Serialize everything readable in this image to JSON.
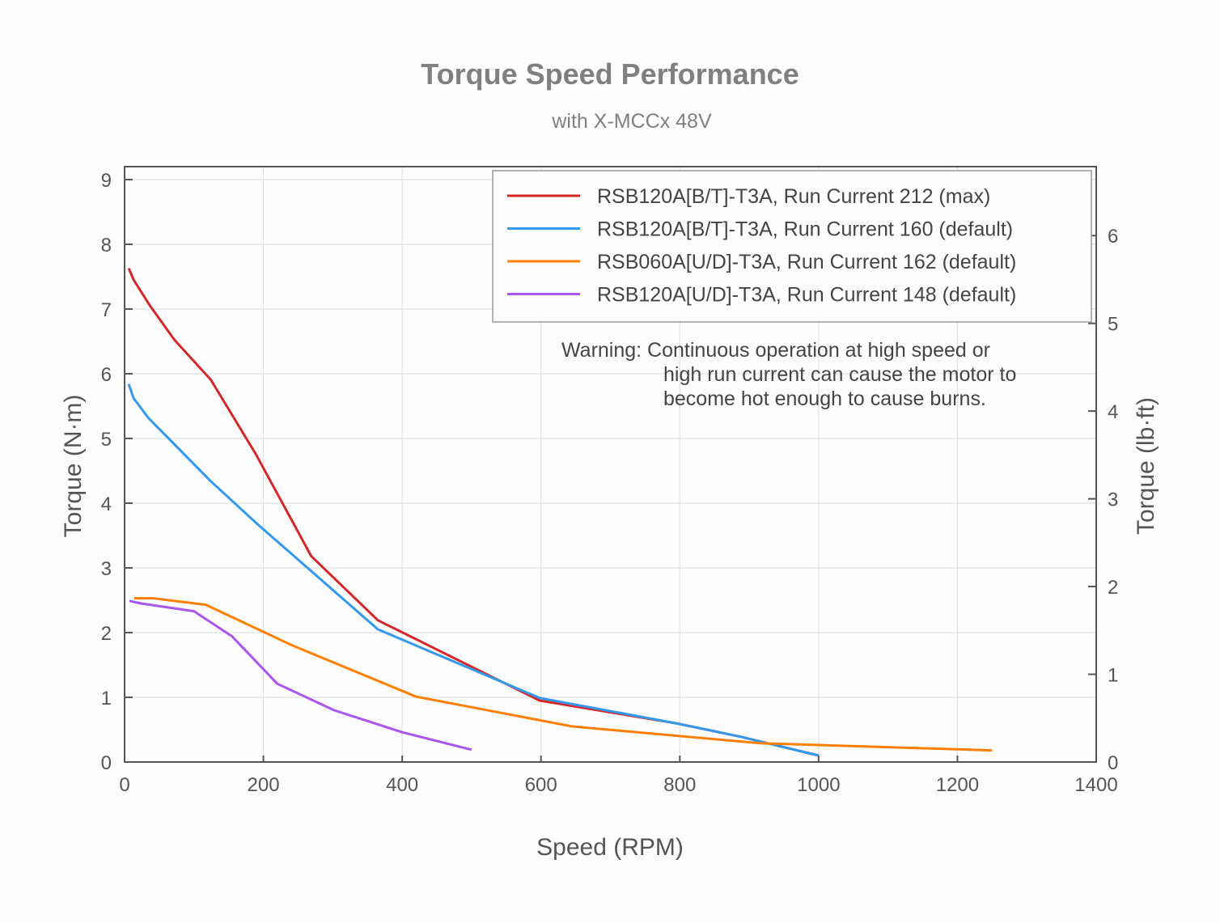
{
  "chart_data": {
    "type": "line",
    "title": "Torque Speed Performance",
    "subtitle": "with X-MCCx 48V",
    "xlabel": "Speed (RPM)",
    "ylabel": "Torque (N·m)",
    "y2label": "Torque (lb·ft)",
    "xlim": [
      0,
      1400
    ],
    "ylim": [
      0,
      9.2
    ],
    "y2lim": [
      0,
      6.786
    ],
    "xticks": [
      "0",
      "200",
      "400",
      "600",
      "800",
      "1000",
      "1200",
      "1400"
    ],
    "yticks": [
      "0",
      "1",
      "2",
      "3",
      "4",
      "5",
      "6",
      "7",
      "8",
      "9"
    ],
    "y2ticks": [
      "0",
      "1",
      "2",
      "3",
      "4",
      "5",
      "6"
    ],
    "grid": true,
    "legend_position": "top-right",
    "annotation": {
      "lines": [
        "Warning: Continuous operation at high speed or",
        "high run current can cause the motor to",
        "become hot enough to cause burns."
      ]
    },
    "series": [
      {
        "name": "RSB120A[B/T]-T3A, Run Current 212 (max)",
        "color": "#d62728",
        "x": [
          6,
          13,
          36,
          72,
          124,
          189,
          269,
          365,
          598,
          794,
          888,
          1000
        ],
        "y": [
          7.63,
          7.45,
          7.06,
          6.52,
          5.91,
          4.76,
          3.18,
          2.19,
          0.95,
          0.6,
          0.39,
          0.1
        ]
      },
      {
        "name": "RSB120A[B/T]-T3A, Run Current 160 (default)",
        "color": "#3399ee",
        "x": [
          6,
          13,
          34,
          124,
          191,
          365,
          598,
          794,
          888,
          1000
        ],
        "y": [
          5.84,
          5.62,
          5.32,
          4.34,
          3.68,
          2.05,
          0.99,
          0.6,
          0.39,
          0.1
        ]
      },
      {
        "name": "RSB060A[U/D]-T3A, Run Current 162 (default)",
        "color": "#ff8000",
        "x": [
          14,
          42,
          117,
          240,
          420,
          645,
          916,
          1250
        ],
        "y": [
          2.53,
          2.53,
          2.43,
          1.81,
          1.01,
          0.55,
          0.29,
          0.18
        ]
      },
      {
        "name": "RSB120A[U/D]-T3A, Run Current 148 (default)",
        "color": "#aa55ee",
        "x": [
          7,
          24,
          100,
          155,
          220,
          302,
          400,
          500
        ],
        "y": [
          2.49,
          2.45,
          2.33,
          1.94,
          1.21,
          0.8,
          0.46,
          0.19
        ]
      }
    ]
  }
}
